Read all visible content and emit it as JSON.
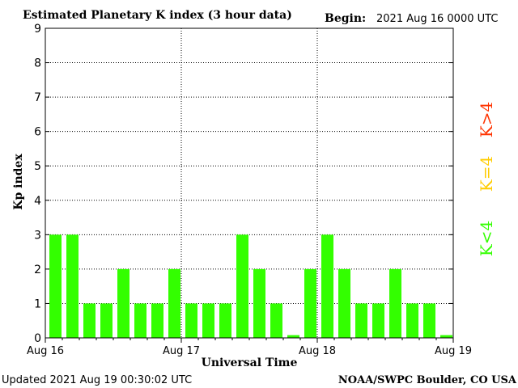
{
  "chart_data": {
    "type": "bar",
    "title": "Estimated Planetary K index (3 hour data)",
    "begin_label": "Begin:",
    "begin_value": "2021 Aug 16 0000 UTC",
    "ylabel": "Kp index",
    "xlabel": "Universal Time",
    "ylim": [
      0,
      9
    ],
    "yticks": [
      "0",
      "1",
      "2",
      "3",
      "4",
      "5",
      "6",
      "7",
      "8",
      "9"
    ],
    "day_labels": [
      "Aug 16",
      "Aug 17",
      "Aug 18",
      "Aug 19"
    ],
    "bar_color": "#33ff00",
    "values": [
      3,
      3,
      1,
      1,
      2,
      1,
      1,
      2,
      1,
      1,
      1,
      3,
      2,
      1,
      0.08,
      2,
      3,
      2,
      1,
      1,
      2,
      1,
      1,
      0.08
    ],
    "grid": "dotted at 1-unit y steps and day boundaries",
    "legend": [
      {
        "text": "K<4",
        "color": "#33ff00"
      },
      {
        "text": "K=4",
        "color": "#ffcc00"
      },
      {
        "text": "K>4",
        "color": "#ff3300"
      }
    ],
    "updated": "Updated 2021 Aug 19 00:30:02 UTC",
    "credit": "NOAA/SWPC Boulder, CO USA"
  }
}
